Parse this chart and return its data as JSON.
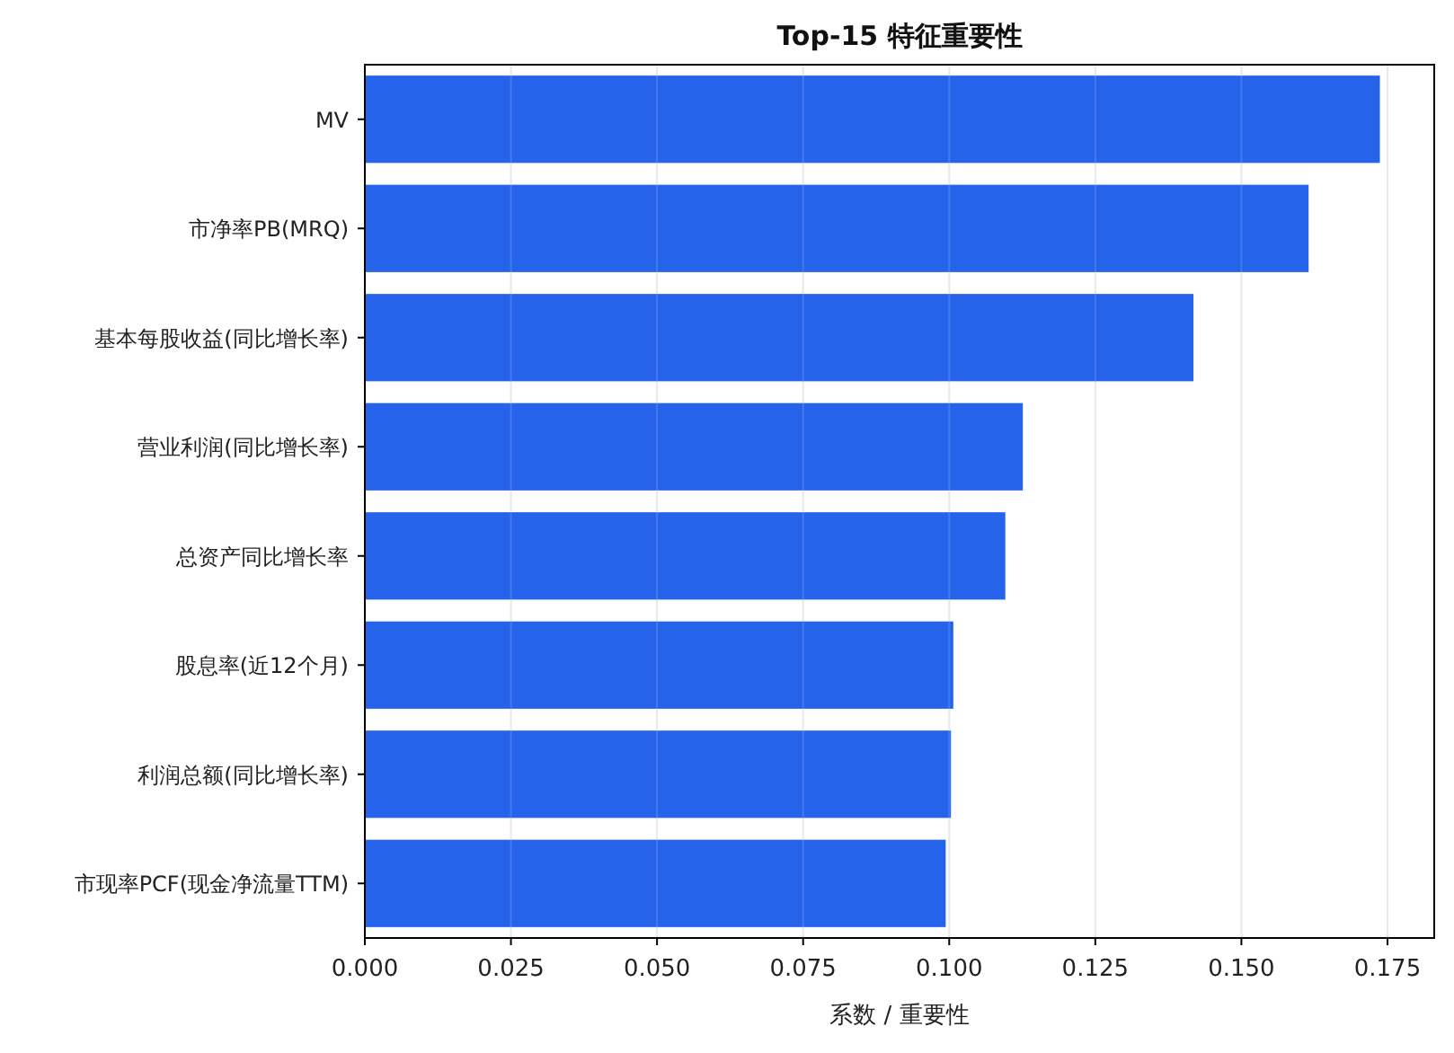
{
  "chart_data": {
    "type": "bar",
    "orientation": "horizontal",
    "title": "Top-15 特征重要性",
    "xlabel": "系数 / 重要性",
    "categories": [
      "MV",
      "市净率PB(MRQ)",
      "基本每股收益(同比增长率)",
      "营业利润(同比增长率)",
      "总资产同比增长率",
      "股息率(近12个月)",
      "利润总额(同比增长率)",
      "市现率PCF(现金净流量TTM)"
    ],
    "values": [
      0.1737,
      0.1615,
      0.1418,
      0.1126,
      0.1096,
      0.1007,
      0.1003,
      0.0994
    ],
    "color": "#2563eb",
    "xlim": [
      0,
      0.183
    ],
    "xticks": [
      {
        "value": 0,
        "label": "0.000"
      },
      {
        "value": 0.025,
        "label": "0.025"
      },
      {
        "value": 0.05,
        "label": "0.050"
      },
      {
        "value": 0.075,
        "label": "0.075"
      },
      {
        "value": 0.1,
        "label": "0.100"
      },
      {
        "value": 0.125,
        "label": "0.125"
      },
      {
        "value": 0.15,
        "label": "0.150"
      },
      {
        "value": 0.175,
        "label": "0.175"
      }
    ],
    "grid": "x"
  }
}
